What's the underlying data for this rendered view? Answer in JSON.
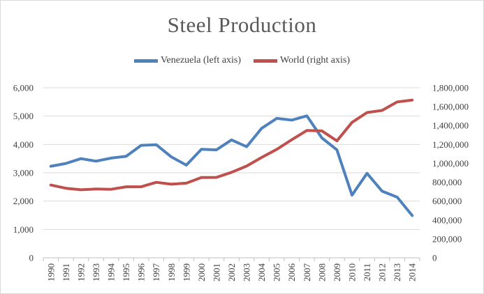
{
  "chart_data": {
    "type": "line",
    "title": "Steel Production",
    "xlabel": "",
    "ylabel_left": "",
    "ylabel_right": "",
    "categories": [
      "1990",
      "1991",
      "1992",
      "1993",
      "1994",
      "1995",
      "1996",
      "1997",
      "1998",
      "1999",
      "2000",
      "2001",
      "2002",
      "2003",
      "2004",
      "2005",
      "2006",
      "2007",
      "2008",
      "2009",
      "2010",
      "2011",
      "2012",
      "2013",
      "2014"
    ],
    "series": [
      {
        "name": "Venezuela (left axis)",
        "axis": "left",
        "color": "#4f81bd",
        "values": [
          3230,
          3330,
          3500,
          3410,
          3520,
          3580,
          3970,
          3990,
          3560,
          3270,
          3830,
          3810,
          4160,
          3920,
          4570,
          4920,
          4860,
          5010,
          4230,
          3810,
          2210,
          2980,
          2350,
          2140,
          1490
        ]
      },
      {
        "name": "World (right axis)",
        "axis": "right",
        "color": "#c0504d",
        "values": [
          770000,
          736000,
          720000,
          728000,
          725000,
          752000,
          752000,
          799000,
          779000,
          790000,
          850000,
          851000,
          905000,
          971000,
          1062000,
          1148000,
          1250000,
          1348000,
          1343000,
          1238000,
          1433000,
          1538000,
          1560000,
          1650000,
          1670000
        ]
      }
    ],
    "ylim_left": [
      0,
      6000
    ],
    "ylim_right": [
      0,
      1800000
    ],
    "yticks_left": [
      "0",
      "1,000",
      "2,000",
      "3,000",
      "4,000",
      "5,000",
      "6,000"
    ],
    "yticks_right": [
      "0",
      "200,000",
      "400,000",
      "600,000",
      "800,000",
      "1,000,000",
      "1,200,000",
      "1,400,000",
      "1,600,000",
      "1,800,000"
    ],
    "grid": true,
    "legend_position": "top-center"
  }
}
